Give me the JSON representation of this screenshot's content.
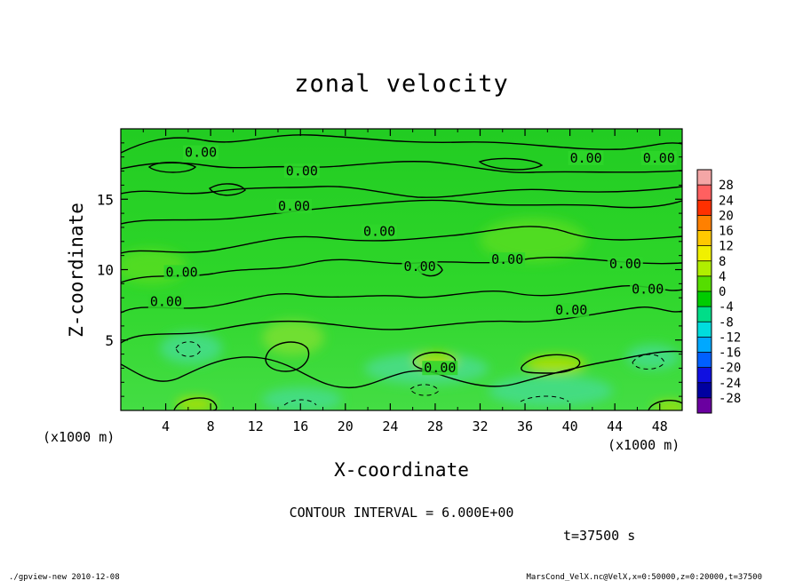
{
  "chart_data": {
    "type": "heatmap",
    "title": "zonal velocity",
    "xlabel": "X-coordinate",
    "ylabel": "Z-coordinate",
    "x_unit": "(x1000 m)",
    "x_unit_right": "(x1000 m)",
    "xlim": [
      0,
      50
    ],
    "ylim": [
      0,
      20
    ],
    "x_ticks": [
      "4",
      "8",
      "12",
      "16",
      "20",
      "24",
      "28",
      "32",
      "36",
      "40",
      "44",
      "48"
    ],
    "y_ticks": [
      "5",
      "10",
      "15"
    ],
    "colorbar_levels": [
      "28",
      "24",
      "20",
      "16",
      "12",
      "8",
      "4",
      "0",
      "-4",
      "-8",
      "-12",
      "-16",
      "-20",
      "-24",
      "-28"
    ],
    "colorbar_colors": [
      "#f4a6a6",
      "#ff6060",
      "#ff3000",
      "#ff8000",
      "#ffc800",
      "#f0f000",
      "#b0ee00",
      "#55dd00",
      "#00cc00",
      "#00dd88",
      "#00dddd",
      "#00a8ff",
      "#0060ff",
      "#1010e0",
      "#0000a0",
      "#6a00a0"
    ],
    "contour_labels": [
      {
        "text": "0.00",
        "x": 5.7,
        "z": 18.0
      },
      {
        "text": "0.00",
        "x": 14.7,
        "z": 16.7
      },
      {
        "text": "0.00",
        "x": 14.0,
        "z": 14.2
      },
      {
        "text": "0.00",
        "x": 21.6,
        "z": 12.4
      },
      {
        "text": "0.00",
        "x": 4.0,
        "z": 9.5
      },
      {
        "text": "0.00",
        "x": 25.2,
        "z": 9.9
      },
      {
        "text": "0.00",
        "x": 33.0,
        "z": 10.4
      },
      {
        "text": "0.00",
        "x": 43.5,
        "z": 10.1
      },
      {
        "text": "0.00",
        "x": 45.5,
        "z": 8.3
      },
      {
        "text": "0.00",
        "x": 38.7,
        "z": 6.8
      },
      {
        "text": "0.00",
        "x": 2.6,
        "z": 7.4
      },
      {
        "text": "0.00",
        "x": 27.0,
        "z": 2.7
      },
      {
        "text": "0.00",
        "x": 40.0,
        "z": 17.6
      },
      {
        "text": "0.00",
        "x": 46.5,
        "z": 17.6
      }
    ],
    "contour_interval": "CONTOUR INTERVAL = 6.000E+00",
    "time_label": "t=37500 s"
  },
  "footer": {
    "left": "./gpview-new  2010-12-08",
    "right": "MarsCond_VelX.nc@VelX,x=0:50000,z=0:20000,t=37500"
  }
}
